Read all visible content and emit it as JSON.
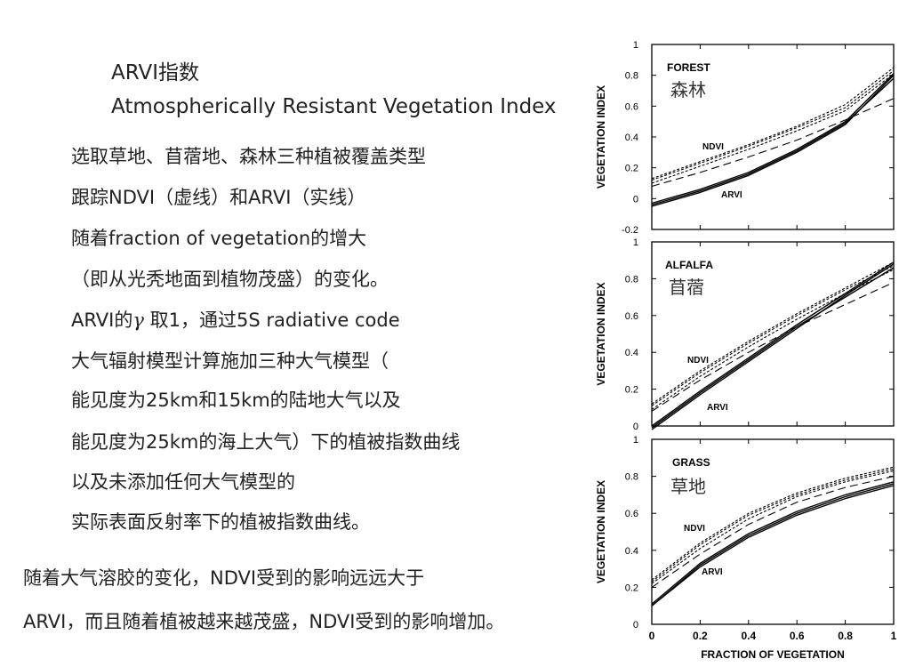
{
  "text": {
    "title_cn": "ARVI指数",
    "title_en": "Atmospherically Resistant Vegetation Index",
    "lines": [
      "选取草地、苜蓿地、森林三种植被覆盖类型",
      "跟踪NDVI（虚线）和ARVI（实线）",
      "随着fraction of vegetation的增大",
      "（即从光秃地面到植物茂盛）的变化。",
      "ARVI的",
      "γ",
      " 取1，通过5S radiative code",
      "大气辐射模型计算施加三种大气模型（",
      "能见度为25km和15km的陆地大气以及",
      "能见度为25km的海上大气）下的植被指数曲线",
      "以及未添加任何大气模型的",
      "实际表面反射率下的植被指数曲线。"
    ],
    "conclusion": [
      "随着大气溶胶的变化，NDVI受到的影响远远大于",
      "ARVI，而且随着植被越来越茂盛，NDVI受到的影响增加。"
    ]
  },
  "chart_data": [
    {
      "type": "line",
      "panel": "FOREST",
      "title": "FOREST",
      "subtitle": "森林",
      "xlabel": "",
      "ylabel": "VEGETATION INDEX",
      "xlim": [
        0,
        1
      ],
      "ylim": [
        -0.2,
        1
      ],
      "y_ticks": [
        "-0.2",
        "0",
        "0.2",
        "0.4",
        "0.6",
        "0.8",
        "1"
      ],
      "annotations": [
        "NDVI",
        "ARVI"
      ],
      "x": [
        0,
        0.2,
        0.4,
        0.6,
        0.8,
        1.0
      ],
      "series": [
        {
          "style": "dotted",
          "values": [
            0.13,
            0.24,
            0.35,
            0.47,
            0.61,
            0.85
          ]
        },
        {
          "style": "dotted",
          "values": [
            0.12,
            0.23,
            0.34,
            0.46,
            0.59,
            0.83
          ]
        },
        {
          "style": "dotted",
          "values": [
            0.1,
            0.21,
            0.32,
            0.44,
            0.57,
            0.81
          ]
        },
        {
          "style": "dashed",
          "values": [
            0.08,
            0.17,
            0.27,
            0.38,
            0.51,
            0.65
          ]
        },
        {
          "style": "solid",
          "values": [
            -0.05,
            0.04,
            0.15,
            0.3,
            0.48,
            0.8
          ]
        },
        {
          "style": "solid",
          "values": [
            -0.03,
            0.06,
            0.17,
            0.32,
            0.5,
            0.81
          ]
        },
        {
          "style": "solid",
          "values": [
            -0.04,
            0.05,
            0.16,
            0.31,
            0.49,
            0.78
          ]
        }
      ]
    },
    {
      "type": "line",
      "panel": "ALFALFA",
      "title": "ALFALFA",
      "subtitle": "苜蓿",
      "xlabel": "",
      "ylabel": "VEGETATION INDEX",
      "xlim": [
        0,
        1
      ],
      "ylim": [
        0,
        1
      ],
      "y_ticks": [
        "0",
        "0.2",
        "0.4",
        "0.6",
        "0.8",
        "1"
      ],
      "annotations": [
        "NDVI",
        "ARVI"
      ],
      "x": [
        0,
        0.2,
        0.4,
        0.6,
        0.8,
        1.0
      ],
      "series": [
        {
          "style": "dotted",
          "values": [
            0.12,
            0.3,
            0.46,
            0.61,
            0.75,
            0.89
          ]
        },
        {
          "style": "dotted",
          "values": [
            0.11,
            0.29,
            0.45,
            0.6,
            0.74,
            0.87
          ]
        },
        {
          "style": "dotted",
          "values": [
            0.09,
            0.27,
            0.43,
            0.58,
            0.72,
            0.85
          ]
        },
        {
          "style": "dashed",
          "values": [
            0.08,
            0.25,
            0.4,
            0.54,
            0.66,
            0.78
          ]
        },
        {
          "style": "solid",
          "values": [
            -0.02,
            0.17,
            0.35,
            0.53,
            0.71,
            0.88
          ]
        },
        {
          "style": "solid",
          "values": [
            0.0,
            0.19,
            0.37,
            0.55,
            0.72,
            0.89
          ]
        },
        {
          "style": "solid",
          "values": [
            -0.01,
            0.18,
            0.36,
            0.54,
            0.7,
            0.86
          ]
        }
      ]
    },
    {
      "type": "line",
      "panel": "GRASS",
      "title": "GRASS",
      "subtitle": "草地",
      "xlabel": "FRACTION OF VEGETATION",
      "ylabel": "VEGETATION INDEX",
      "xlim": [
        0,
        1
      ],
      "ylim": [
        0,
        1
      ],
      "y_ticks": [
        "0",
        "0.2",
        "0.4",
        "0.6",
        "0.8",
        "1"
      ],
      "x_ticks": [
        "0",
        "0.2",
        "0.4",
        "0.6",
        "0.8",
        "1"
      ],
      "annotations": [
        "NDVI",
        "ARVI"
      ],
      "x": [
        0,
        0.2,
        0.4,
        0.6,
        0.8,
        1.0
      ],
      "series": [
        {
          "style": "dotted",
          "values": [
            0.24,
            0.44,
            0.6,
            0.71,
            0.79,
            0.85
          ]
        },
        {
          "style": "dotted",
          "values": [
            0.23,
            0.43,
            0.59,
            0.7,
            0.78,
            0.84
          ]
        },
        {
          "style": "dotted",
          "values": [
            0.22,
            0.41,
            0.57,
            0.69,
            0.77,
            0.83
          ]
        },
        {
          "style": "dashed",
          "values": [
            0.2,
            0.38,
            0.54,
            0.66,
            0.74,
            0.8
          ]
        },
        {
          "style": "solid",
          "values": [
            0.1,
            0.32,
            0.48,
            0.6,
            0.69,
            0.76
          ]
        },
        {
          "style": "solid",
          "values": [
            0.11,
            0.33,
            0.49,
            0.61,
            0.7,
            0.77
          ]
        },
        {
          "style": "solid",
          "values": [
            0.1,
            0.31,
            0.47,
            0.59,
            0.68,
            0.75
          ]
        }
      ]
    }
  ]
}
